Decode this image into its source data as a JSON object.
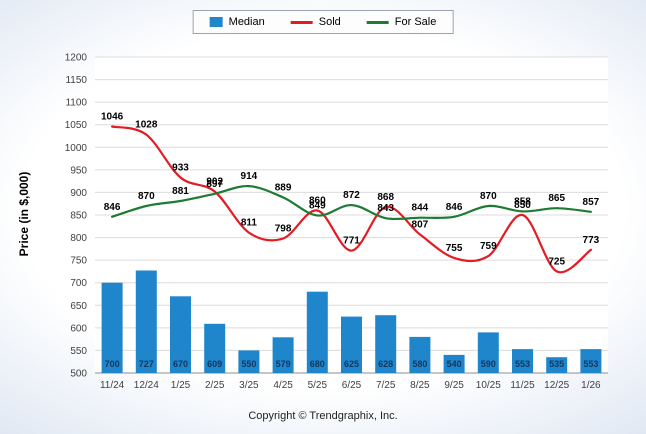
{
  "legend": {
    "items": [
      {
        "label": "Median",
        "type": "bar",
        "color": "#1f86cc"
      },
      {
        "label": "Sold",
        "type": "line",
        "color": "#e31b23"
      },
      {
        "label": "For Sale",
        "type": "line",
        "color": "#1e7b34"
      }
    ]
  },
  "footer": {
    "copyright": "Copyright © Trendgraphix, Inc."
  },
  "chart_data": {
    "type": "bar+line",
    "categories": [
      "11/24",
      "12/24",
      "1/25",
      "2/25",
      "3/25",
      "4/25",
      "5/25",
      "6/25",
      "7/25",
      "8/25",
      "9/25",
      "10/25",
      "11/25",
      "12/25",
      "1/26"
    ],
    "series": [
      {
        "name": "Median",
        "type": "bar",
        "color": "#1f86cc",
        "label_color": "#16365c",
        "values": [
          700,
          727,
          670,
          609,
          550,
          579,
          680,
          625,
          628,
          580,
          540,
          590,
          553,
          535,
          553
        ]
      },
      {
        "name": "Sold",
        "type": "line",
        "color": "#e31b23",
        "values": [
          1046,
          1028,
          933,
          902,
          811,
          798,
          860,
          771,
          868,
          807,
          755,
          759,
          850,
          725,
          773
        ]
      },
      {
        "name": "For Sale",
        "type": "line",
        "color": "#1e7b34",
        "values": [
          846,
          870,
          881,
          897,
          914,
          889,
          849,
          872,
          843,
          844,
          846,
          870,
          858,
          865,
          857
        ]
      }
    ],
    "title": "",
    "xlabel": "",
    "ylabel": "Price (in $,000)",
    "ylim": [
      500,
      1200
    ],
    "ytick_step": 50,
    "grid": true,
    "legend_position": "top"
  }
}
